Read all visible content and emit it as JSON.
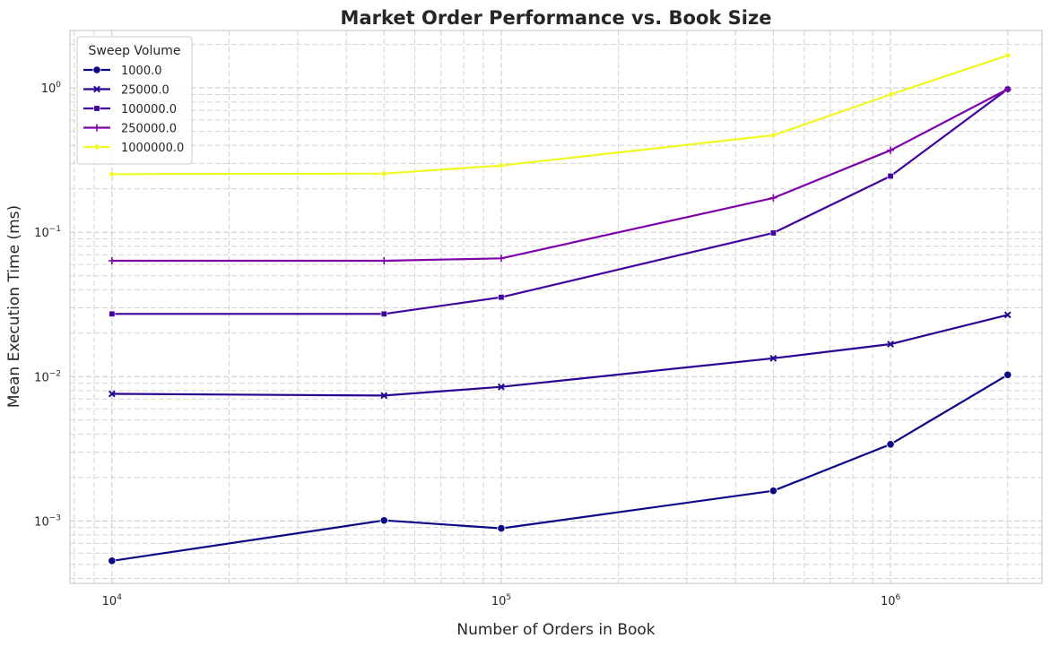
{
  "chart_data": {
    "type": "line",
    "title": "Market Order Performance vs. Book Size",
    "xlabel": "Number of Orders in Book",
    "ylabel": "Mean Execution Time (ms)",
    "xscale": "log",
    "yscale": "log",
    "xlim": [
      7800,
      2450000
    ],
    "ylim": [
      0.00037,
      2.5
    ],
    "grid": true,
    "legend_title": "Sweep Volume",
    "legend_placement": "top-left",
    "x_ticks": [
      {
        "base": "10",
        "exp": "4",
        "value": 10000
      },
      {
        "base": "10",
        "exp": "5",
        "value": 100000
      },
      {
        "base": "10",
        "exp": "6",
        "value": 1000000
      }
    ],
    "y_ticks": [
      {
        "base": "10",
        "exp": "−3",
        "value": 0.001
      },
      {
        "base": "10",
        "exp": "−2",
        "value": 0.01
      },
      {
        "base": "10",
        "exp": "−1",
        "value": 0.1
      },
      {
        "base": "10",
        "exp": "0",
        "value": 1
      }
    ],
    "x": [
      10000,
      50000,
      100000,
      500000,
      1000000,
      2000000
    ],
    "series": [
      {
        "name": "1000.0",
        "color": "#0d0887",
        "marker": "circle",
        "values": [
          0.00053,
          0.00101,
          0.00089,
          0.00162,
          0.0034,
          0.0103
        ]
      },
      {
        "name": "25000.0",
        "color": "#2a0593",
        "marker": "x",
        "values": [
          0.0076,
          0.0074,
          0.0085,
          0.0134,
          0.0168,
          0.0268
        ]
      },
      {
        "name": "100000.0",
        "color": "#41049d",
        "marker": "square",
        "values": [
          0.0272,
          0.0272,
          0.0355,
          0.099,
          0.245,
          0.98
        ]
      },
      {
        "name": "250000.0",
        "color": "#7e03a8",
        "marker": "plus",
        "values": [
          0.0635,
          0.0635,
          0.066,
          0.173,
          0.37,
          0.98
        ]
      },
      {
        "name": "1000000.0",
        "color": "#f0f921",
        "marker": "circle-small",
        "values": [
          0.253,
          0.255,
          0.29,
          0.47,
          0.9,
          1.68
        ]
      }
    ]
  }
}
